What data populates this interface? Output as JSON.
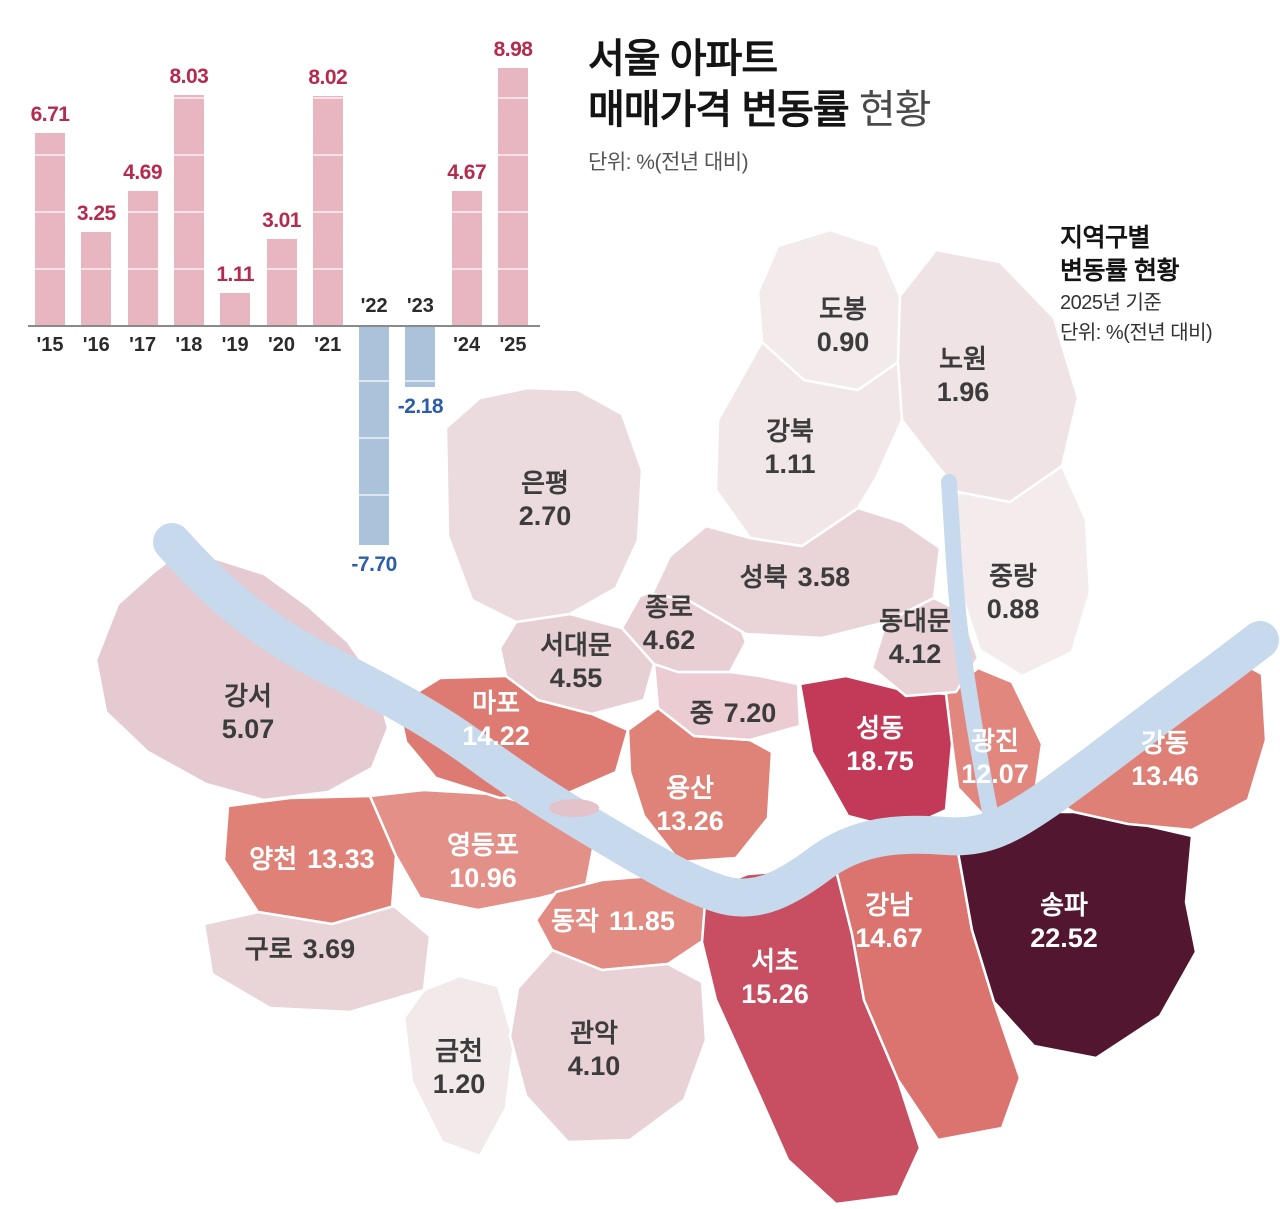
{
  "header": {
    "title_line1": "서울 아파트",
    "title_line2_bold": "매매가격 변동률",
    "title_line2_normal": "현황",
    "unit": "단위: %(전년 대비)"
  },
  "map_legend": {
    "line1": "지역구별",
    "line2": "변동률 현황",
    "basis": "2025년 기준",
    "unit": "단위: %(전년 대비)"
  },
  "chart_data": [
    {
      "type": "bar",
      "title": "서울 아파트 매매가격 변동률 현황",
      "unit": "%(전년 대비)",
      "categories": [
        "'15",
        "'16",
        "'17",
        "'18",
        "'19",
        "'20",
        "'21",
        "'22",
        "'23",
        "'24",
        "'25"
      ],
      "values": [
        6.71,
        3.25,
        4.69,
        8.03,
        1.11,
        3.01,
        8.02,
        -7.7,
        -2.18,
        4.67,
        8.98
      ],
      "ylim": [
        -8.5,
        9.5
      ],
      "grid": false,
      "colors": {
        "positive_bar": "#e8b6c1",
        "negative_bar": "#abc2db",
        "positive_label": "#b52b4e",
        "negative_label": "#2d5ca9"
      }
    },
    {
      "type": "heatmap",
      "subtype": "choropleth-map",
      "title": "지역구별 변동률 현황",
      "basis": "2025년 기준",
      "unit": "%(전년 대비)",
      "river_color": "#c7d9ec",
      "regions": [
        {
          "id": "gangseo",
          "name": "강서",
          "value": "5.07",
          "fill": "#e5cbd1",
          "text_color": "#3c3c3c"
        },
        {
          "id": "yangcheon",
          "name": "양천",
          "value": "13.33",
          "fill": "#df8177",
          "text_color": "#ffffff"
        },
        {
          "id": "guro",
          "name": "구로",
          "value": "3.69",
          "fill": "#e9d4d8",
          "text_color": "#3c3c3c"
        },
        {
          "id": "geumcheon",
          "name": "금천",
          "value": "1.20",
          "fill": "#f2e9ea",
          "text_color": "#3c3c3c"
        },
        {
          "id": "yeongdeungpo",
          "name": "영등포",
          "value": "10.96",
          "fill": "#e39089",
          "text_color": "#ffffff"
        },
        {
          "id": "dongjak",
          "name": "동작",
          "value": "11.85",
          "fill": "#e18b82",
          "text_color": "#ffffff"
        },
        {
          "id": "gwanak",
          "name": "관악",
          "value": "4.10",
          "fill": "#e8d2d6",
          "text_color": "#3c3c3c"
        },
        {
          "id": "seocho",
          "name": "서초",
          "value": "15.26",
          "fill": "#c84e62",
          "text_color": "#ffffff"
        },
        {
          "id": "gangnam",
          "name": "강남",
          "value": "14.67",
          "fill": "#db746f",
          "text_color": "#ffffff"
        },
        {
          "id": "songpa",
          "name": "송파",
          "value": "22.52",
          "fill": "#521630",
          "text_color": "#ffffff"
        },
        {
          "id": "gangdong",
          "name": "강동",
          "value": "13.46",
          "fill": "#de8076",
          "text_color": "#ffffff"
        },
        {
          "id": "gwangjin",
          "name": "광진",
          "value": "12.07",
          "fill": "#e1877e",
          "text_color": "#ffffff"
        },
        {
          "id": "seongdong",
          "name": "성동",
          "value": "18.75",
          "fill": "#c23a57",
          "text_color": "#ffffff"
        },
        {
          "id": "yongsan",
          "name": "용산",
          "value": "13.26",
          "fill": "#df8278",
          "text_color": "#ffffff"
        },
        {
          "id": "jung",
          "name": "중",
          "value": "7.20",
          "fill": "#ebccd3",
          "text_color": "#3c3c3c"
        },
        {
          "id": "mapo",
          "name": "마포",
          "value": "14.22",
          "fill": "#dd7b72",
          "text_color": "#ffffff"
        },
        {
          "id": "seodaemun",
          "name": "서대문",
          "value": "4.55",
          "fill": "#e7d0d4",
          "text_color": "#3c3c3c"
        },
        {
          "id": "jongno",
          "name": "종로",
          "value": "4.62",
          "fill": "#e7cfd4",
          "text_color": "#3c3c3c"
        },
        {
          "id": "eunpyeong",
          "name": "은평",
          "value": "2.70",
          "fill": "#ebdbde",
          "text_color": "#3c3c3c"
        },
        {
          "id": "seongbuk",
          "name": "성북",
          "value": "3.58",
          "fill": "#e9d5d8",
          "text_color": "#3c3c3c"
        },
        {
          "id": "gangbuk",
          "name": "강북",
          "value": "1.11",
          "fill": "#f1e7e9",
          "text_color": "#3c3c3c"
        },
        {
          "id": "dobong",
          "name": "도봉",
          "value": "0.90",
          "fill": "#f3eaeb",
          "text_color": "#3c3c3c"
        },
        {
          "id": "nowon",
          "name": "노원",
          "value": "1.96",
          "fill": "#efe3e5",
          "text_color": "#3c3c3c"
        },
        {
          "id": "jungnang",
          "name": "중랑",
          "value": "0.88",
          "fill": "#f3ebec",
          "text_color": "#3c3c3c"
        },
        {
          "id": "dongdaemun",
          "name": "동대문",
          "value": "4.12",
          "fill": "#e8d2d6",
          "text_color": "#3c3c3c"
        }
      ]
    }
  ]
}
